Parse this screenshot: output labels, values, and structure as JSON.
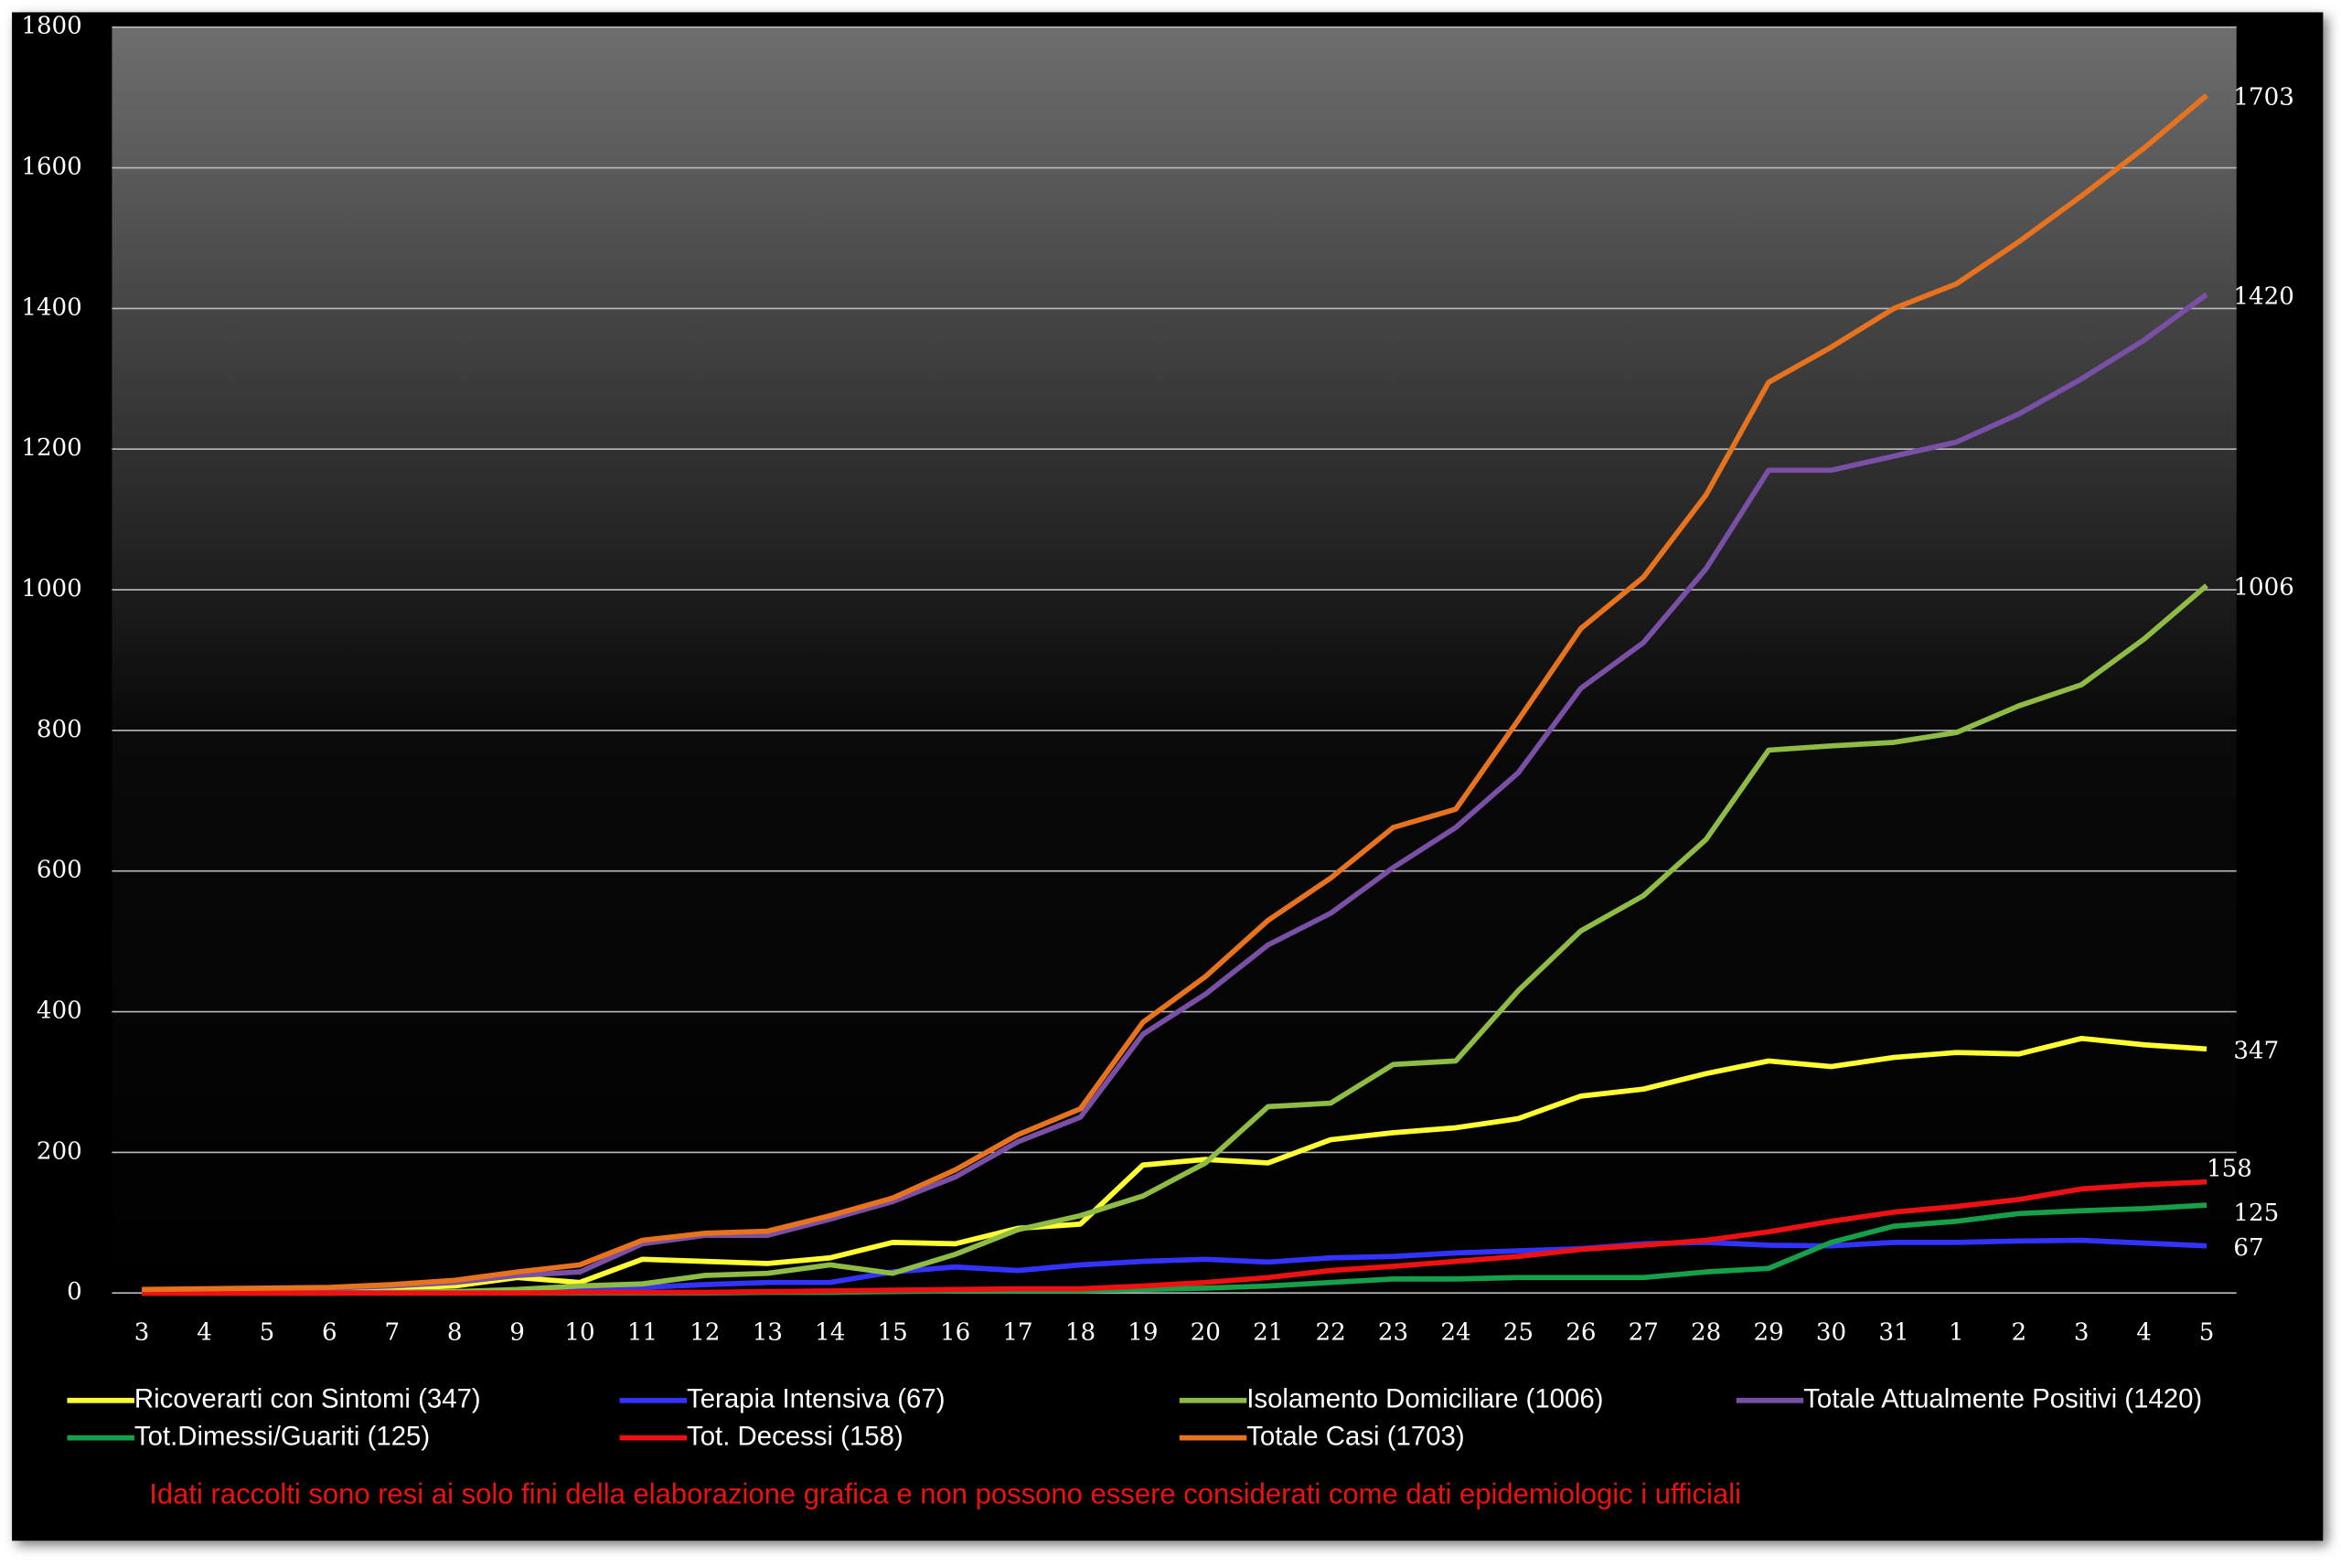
{
  "chart_data": {
    "type": "line",
    "categories": [
      "3",
      "4",
      "5",
      "6",
      "7",
      "8",
      "9",
      "10",
      "11",
      "12",
      "13",
      "14",
      "15",
      "16",
      "17",
      "18",
      "19",
      "20",
      "21",
      "22",
      "23",
      "24",
      "25",
      "26",
      "27",
      "28",
      "29",
      "30",
      "31",
      "1",
      "2",
      "3",
      "4",
      "5"
    ],
    "series": [
      {
        "name": "Ricoverarti con Sintomi (347)",
        "color": "#ffff33",
        "values": [
          2,
          3,
          4,
          5,
          7,
          10,
          22,
          15,
          48,
          45,
          42,
          50,
          72,
          70,
          92,
          98,
          182,
          190,
          185,
          218,
          228,
          235,
          248,
          280,
          290,
          312,
          330,
          322,
          335,
          342,
          340,
          362,
          353,
          347
        ]
      },
      {
        "name": "Terapia Intensiva (67)",
        "color": "#3333ff",
        "values": [
          0,
          0,
          0,
          0,
          1,
          2,
          3,
          5,
          8,
          12,
          15,
          15,
          30,
          37,
          32,
          40,
          45,
          48,
          44,
          50,
          52,
          57,
          60,
          63,
          70,
          72,
          68,
          67,
          72,
          72,
          74,
          75,
          71,
          67
        ]
      },
      {
        "name": "Isolamento Domiciliare (1006)",
        "color": "#8fbc44",
        "values": [
          0,
          0,
          0,
          0,
          1,
          2,
          5,
          10,
          13,
          25,
          28,
          40,
          28,
          55,
          90,
          110,
          138,
          185,
          265,
          270,
          325,
          330,
          430,
          515,
          565,
          645,
          772,
          778,
          783,
          797,
          835,
          865,
          930,
          1006
        ]
      },
      {
        "name": "Totale Attualmente Positivi (1420)",
        "color": "#7a4fa6",
        "values": [
          4,
          5,
          6,
          7,
          10,
          15,
          25,
          30,
          70,
          82,
          82,
          105,
          130,
          165,
          215,
          250,
          368,
          425,
          495,
          540,
          605,
          662,
          740,
          860,
          925,
          1030,
          1170,
          1170,
          1190,
          1210,
          1250,
          1300,
          1355,
          1420
        ]
      },
      {
        "name": "Tot.Dimessi/Guariti (125)",
        "color": "#17a04a",
        "values": [
          0,
          0,
          0,
          0,
          0,
          0,
          0,
          0,
          0,
          0,
          1,
          1,
          2,
          3,
          3,
          3,
          5,
          7,
          10,
          15,
          20,
          20,
          22,
          22,
          22,
          30,
          35,
          72,
          95,
          102,
          113,
          117,
          120,
          125
        ]
      },
      {
        "name": "Tot. Decessi (158)",
        "color": "#ee1111",
        "values": [
          0,
          0,
          0,
          0,
          0,
          0,
          0,
          1,
          1,
          1,
          2,
          3,
          4,
          5,
          6,
          6,
          10,
          15,
          22,
          32,
          38,
          45,
          52,
          62,
          68,
          75,
          87,
          102,
          115,
          123,
          133,
          148,
          154,
          158
        ]
      },
      {
        "name": "Totale Casi (1703)",
        "color": "#e8731e",
        "values": [
          5,
          6,
          7,
          8,
          12,
          18,
          30,
          40,
          75,
          85,
          88,
          110,
          135,
          175,
          225,
          262,
          385,
          450,
          530,
          590,
          662,
          688,
          815,
          945,
          1018,
          1135,
          1295,
          1345,
          1400,
          1435,
          1495,
          1560,
          1628,
          1703
        ]
      }
    ],
    "ylim": [
      0,
      1800
    ],
    "yticks": [
      0,
      200,
      400,
      600,
      800,
      1000,
      1200,
      1400,
      1600,
      1800
    ],
    "grid": true,
    "note": "Idati raccolti  sono resi ai solo fini della  elaborazione  grafica  e non possono essere considerati come dati epidemiologic i  ufficiali"
  }
}
